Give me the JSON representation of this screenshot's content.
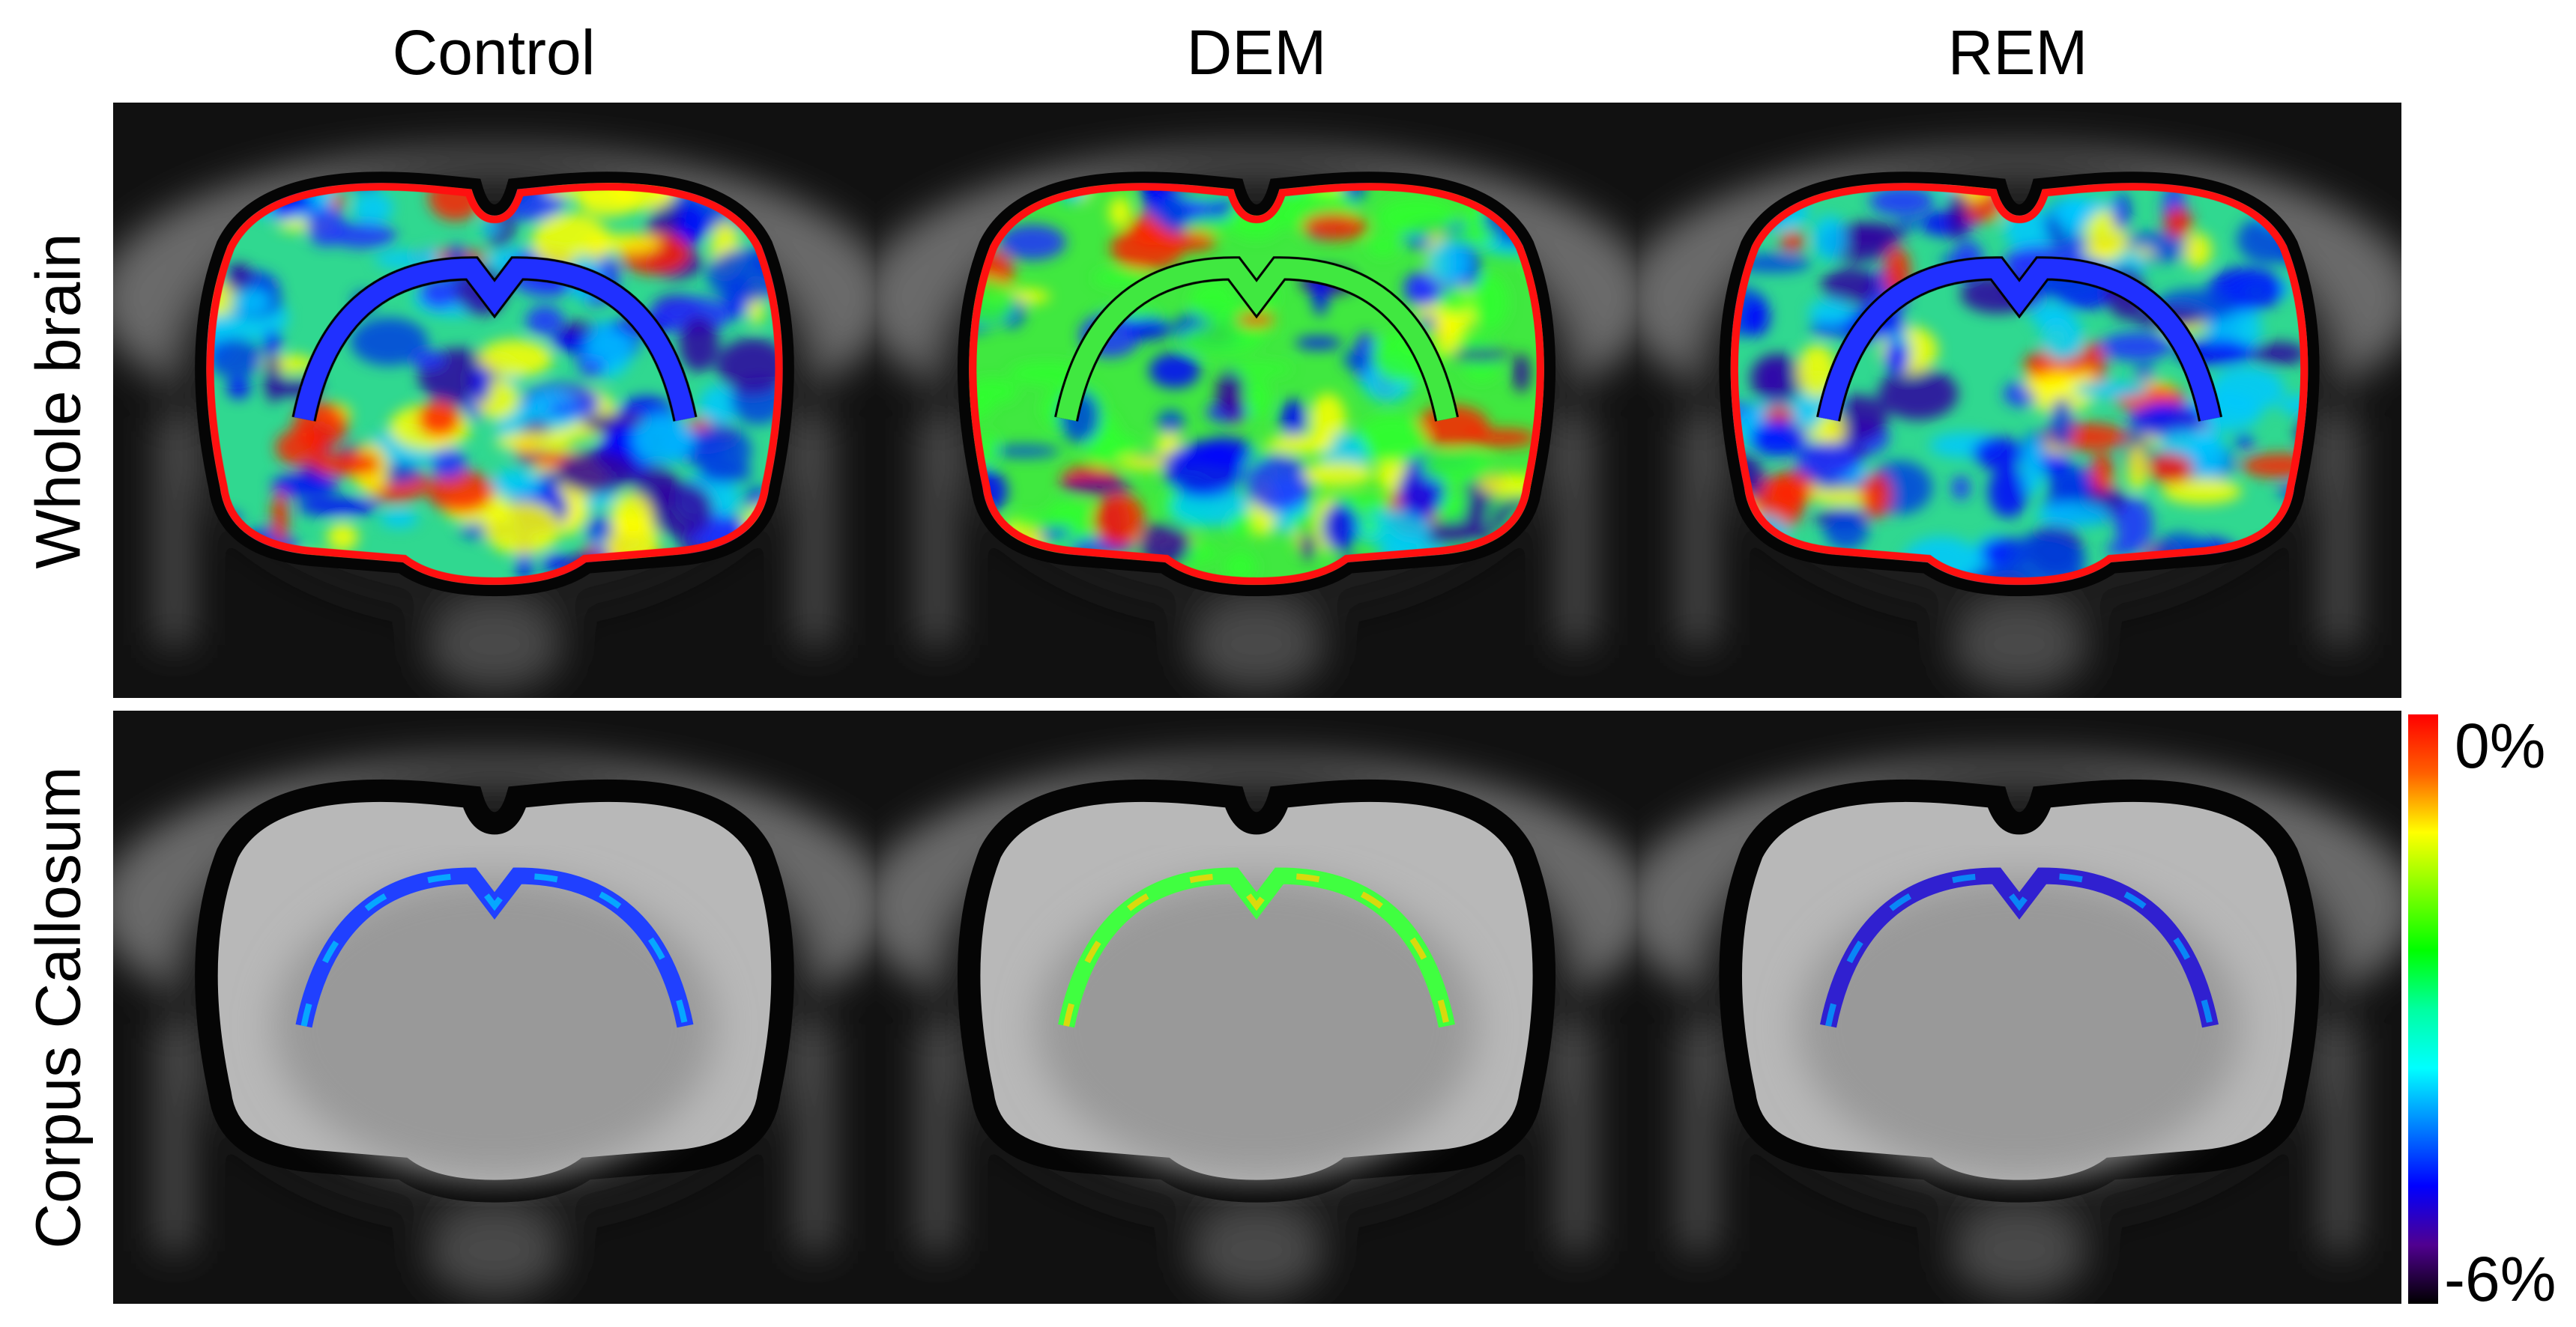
{
  "columns": [
    "Control",
    "DEM",
    "REM"
  ],
  "rows": [
    "Whole brain",
    "Corpus Callosum"
  ],
  "colorbar": {
    "max_label": "0%",
    "min_label": "-6%",
    "colormap": [
      "#ff0000",
      "#ff6000",
      "#ffff00",
      "#80ff00",
      "#00ff00",
      "#00ffa0",
      "#00ffff",
      "#0080ff",
      "#0000ff",
      "#500090",
      "#000000"
    ]
  }
}
